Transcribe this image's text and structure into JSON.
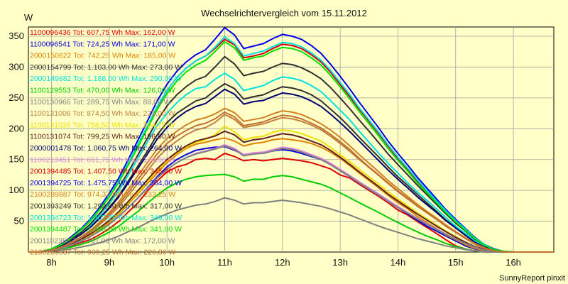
{
  "chart_data": {
    "type": "line",
    "title": "Wechselrichtervergleich vom 15.11.2012",
    "ylabel": "W",
    "xlabel": "",
    "footer": "SunnyReport pinxit",
    "xlim": [
      7.6,
      16.7
    ],
    "ylim": [
      0,
      365
    ],
    "x_ticks": [
      8,
      9,
      10,
      11,
      12,
      13,
      14,
      15,
      16
    ],
    "x_tick_labels": [
      "8h",
      "9h",
      "10h",
      "11h",
      "12h",
      "13h",
      "14h",
      "15h",
      "16h"
    ],
    "y_ticks": [
      50,
      100,
      150,
      200,
      250,
      300,
      350
    ],
    "grid": true,
    "legend_position": "top-left",
    "x": [
      7.6,
      7.8,
      8.0,
      8.17,
      8.33,
      8.5,
      8.67,
      8.83,
      9.0,
      9.17,
      9.33,
      9.5,
      9.67,
      9.83,
      10.0,
      10.17,
      10.33,
      10.5,
      10.67,
      10.83,
      11.0,
      11.17,
      11.33,
      11.5,
      11.67,
      11.83,
      12.0,
      12.17,
      12.33,
      12.5,
      12.67,
      12.83,
      13.0,
      13.17,
      13.33,
      13.5,
      13.67,
      13.83,
      14.0,
      14.17,
      14.33,
      14.5,
      14.67,
      14.83,
      15.0,
      15.17,
      15.33,
      15.5,
      15.67,
      15.83,
      16.0,
      16.17,
      16.33,
      16.5,
      16.7
    ],
    "series": [
      {
        "name": "1100096436 Tot: 607,75 Wh Max: 162,00 W",
        "color": "#e00000",
        "values": [
          0,
          0,
          3,
          6,
          10,
          15,
          20,
          28,
          38,
          50,
          65,
          80,
          100,
          115,
          130,
          138,
          142,
          150,
          152,
          150,
          160,
          155,
          148,
          150,
          148,
          150,
          152,
          150,
          148,
          145,
          140,
          135,
          125,
          120,
          110,
          100,
          90,
          80,
          68,
          60,
          50,
          40,
          30,
          20,
          10,
          5,
          2,
          0,
          0,
          0,
          0,
          0,
          0,
          0,
          0
        ]
      },
      {
        "name": "1100096541 Tot: 724,25 Wh Max: 171,00 W",
        "color": "#0000e0",
        "values": [
          0,
          0,
          3,
          7,
          12,
          18,
          25,
          34,
          45,
          58,
          72,
          88,
          105,
          122,
          138,
          150,
          158,
          165,
          168,
          170,
          171,
          165,
          158,
          160,
          160,
          164,
          166,
          164,
          160,
          155,
          150,
          142,
          132,
          122,
          112,
          102,
          92,
          82,
          72,
          62,
          52,
          42,
          34,
          26,
          18,
          10,
          5,
          2,
          0,
          0,
          0,
          0,
          0,
          0,
          0
        ]
      },
      {
        "name": "2000150622 Tot: 742,25 Wh Max: 185,00 W",
        "color": "#e08000",
        "values": [
          0,
          0,
          3,
          7,
          12,
          18,
          26,
          36,
          48,
          62,
          78,
          95,
          112,
          128,
          145,
          158,
          168,
          175,
          178,
          182,
          185,
          180,
          172,
          176,
          178,
          182,
          184,
          182,
          180,
          176,
          170,
          162,
          152,
          140,
          128,
          116,
          104,
          92,
          80,
          70,
          58,
          48,
          38,
          28,
          20,
          12,
          6,
          2,
          0,
          0,
          0,
          0,
          0,
          0,
          0
        ]
      },
      {
        "name": "2000154799 Tot: 1.103,00 Wh Max: 273,00 W",
        "color": "#303030",
        "values": [
          0,
          0,
          4,
          10,
          18,
          28,
          40,
          55,
          72,
          92,
          115,
          140,
          165,
          190,
          210,
          225,
          235,
          245,
          250,
          262,
          273,
          265,
          248,
          252,
          255,
          262,
          268,
          266,
          262,
          255,
          245,
          232,
          218,
          202,
          186,
          170,
          154,
          138,
          122,
          108,
          94,
          80,
          66,
          52,
          40,
          28,
          16,
          8,
          3,
          1,
          0,
          0,
          0,
          0,
          0
        ]
      },
      {
        "name": "2000149882 Tot: 1.188,00 Wh Max: 290,00 W",
        "color": "#00e0e0",
        "values": [
          0,
          0,
          4,
          10,
          19,
          30,
          43,
          59,
          78,
          100,
          125,
          152,
          180,
          205,
          225,
          242,
          255,
          265,
          268,
          280,
          290,
          280,
          262,
          266,
          270,
          278,
          284,
          282,
          278,
          270,
          260,
          246,
          230,
          214,
          196,
          178,
          160,
          144,
          128,
          112,
          98,
          84,
          70,
          56,
          42,
          30,
          18,
          9,
          3,
          1,
          0,
          0,
          0,
          0,
          0
        ]
      },
      {
        "name": "1100129553 Tot: 470,00 Wh Max: 126,00 W",
        "color": "#00cc00",
        "values": [
          0,
          0,
          2,
          5,
          8,
          12,
          17,
          24,
          32,
          42,
          54,
          66,
          80,
          92,
          104,
          112,
          118,
          122,
          124,
          125,
          126,
          122,
          115,
          118,
          118,
          122,
          124,
          122,
          118,
          114,
          110,
          104,
          96,
          88,
          80,
          72,
          64,
          56,
          48,
          40,
          33,
          26,
          20,
          14,
          9,
          5,
          2,
          0,
          0,
          0,
          0,
          0,
          0,
          0,
          0
        ]
      },
      {
        "name": "1100130966 Tot: 289,75 Wh Max: 88,00 W",
        "color": "#808080",
        "values": [
          0,
          0,
          1,
          3,
          5,
          8,
          11,
          15,
          20,
          26,
          33,
          40,
          48,
          55,
          62,
          68,
          72,
          76,
          78,
          82,
          88,
          84,
          78,
          80,
          80,
          82,
          84,
          82,
          80,
          77,
          74,
          70,
          65,
          60,
          54,
          48,
          42,
          37,
          32,
          27,
          22,
          18,
          14,
          10,
          7,
          4,
          2,
          0,
          0,
          0,
          0,
          0,
          0,
          0,
          0
        ]
      },
      {
        "name": "1100131006 Tot: 874,50 Wh Max: 223,00 W",
        "color": "#c08040",
        "values": [
          0,
          0,
          3,
          8,
          14,
          22,
          32,
          44,
          58,
          74,
          92,
          112,
          132,
          152,
          168,
          180,
          190,
          198,
          202,
          210,
          223,
          215,
          202,
          205,
          208,
          213,
          218,
          216,
          212,
          206,
          198,
          188,
          176,
          163,
          150,
          137,
          124,
          111,
          98,
          86,
          75,
          64,
          53,
          42,
          32,
          22,
          13,
          6,
          2,
          0,
          0,
          0,
          0,
          0,
          0
        ]
      },
      {
        "name": "1100131026 Tot: 758,50 Wh Max: 204,75 W",
        "color": "#f0e000",
        "values": [
          0,
          0,
          3,
          7,
          12,
          19,
          28,
          38,
          50,
          64,
          80,
          97,
          115,
          132,
          148,
          160,
          170,
          178,
          182,
          190,
          204,
          195,
          182,
          186,
          188,
          194,
          198,
          196,
          192,
          186,
          180,
          170,
          158,
          146,
          134,
          122,
          110,
          98,
          86,
          75,
          64,
          54,
          44,
          34,
          25,
          16,
          9,
          4,
          1,
          0,
          0,
          0,
          0,
          0,
          0
        ]
      },
      {
        "name": "1100131074 Tot: 799,25 Wh Max: 196,00 W",
        "color": "#602020",
        "values": [
          0,
          0,
          3,
          7,
          13,
          20,
          29,
          39,
          51,
          66,
          82,
          100,
          118,
          135,
          150,
          162,
          172,
          180,
          184,
          188,
          196,
          190,
          178,
          182,
          184,
          188,
          192,
          190,
          186,
          180,
          174,
          165,
          154,
          142,
          130,
          118,
          106,
          94,
          83,
          72,
          62,
          52,
          42,
          33,
          24,
          16,
          9,
          4,
          1,
          0,
          0,
          0,
          0,
          0,
          0
        ]
      },
      {
        "name": "2000001478 Tot: 1.060,75 Wh Max: 264,00 W",
        "color": "#000070",
        "values": [
          0,
          0,
          4,
          10,
          18,
          28,
          40,
          54,
          71,
          90,
          112,
          136,
          160,
          183,
          202,
          217,
          228,
          236,
          241,
          252,
          264,
          256,
          240,
          244,
          246,
          252,
          258,
          256,
          252,
          245,
          236,
          224,
          210,
          195,
          180,
          164,
          148,
          133,
          118,
          104,
          90,
          77,
          64,
          51,
          39,
          27,
          16,
          8,
          3,
          1,
          0,
          0,
          0,
          0,
          0
        ]
      },
      {
        "name": "1100213451 Tot: 661,75 Wh Max: 174,00 W",
        "color": "#e080e0",
        "values": [
          0,
          0,
          2,
          6,
          11,
          17,
          25,
          34,
          45,
          58,
          72,
          88,
          104,
          120,
          134,
          145,
          153,
          160,
          164,
          168,
          174,
          168,
          158,
          161,
          162,
          166,
          170,
          168,
          164,
          158,
          152,
          144,
          134,
          124,
          114,
          104,
          94,
          84,
          74,
          64,
          55,
          46,
          37,
          29,
          21,
          14,
          8,
          3,
          1,
          0,
          0,
          0,
          0,
          0,
          0
        ]
      },
      {
        "name": "2001394485 Tot: 1.407,50 Wh Max: 345,00 W",
        "color": "#d00000",
        "values": [
          0,
          0,
          5,
          12,
          22,
          35,
          50,
          68,
          90,
          115,
          143,
          174,
          205,
          235,
          262,
          283,
          298,
          310,
          318,
          330,
          345,
          336,
          315,
          318,
          322,
          330,
          337,
          335,
          330,
          320,
          308,
          292,
          272,
          252,
          232,
          212,
          192,
          172,
          152,
          134,
          116,
          99,
          82,
          66,
          50,
          36,
          22,
          11,
          4,
          1,
          0,
          0,
          0,
          0,
          0
        ]
      },
      {
        "name": "2001394725 Tot: 1.475,75 Wh Max: 364,00 W",
        "color": "#0000f0",
        "values": [
          0,
          0,
          5,
          13,
          24,
          37,
          53,
          72,
          95,
          121,
          150,
          182,
          214,
          245,
          272,
          293,
          308,
          320,
          328,
          345,
          364,
          352,
          330,
          334,
          338,
          346,
          353,
          350,
          345,
          335,
          322,
          305,
          285,
          264,
          243,
          222,
          201,
          180,
          160,
          141,
          122,
          104,
          86,
          69,
          53,
          38,
          24,
          12,
          5,
          1,
          0,
          0,
          0,
          0,
          0
        ]
      },
      {
        "name": "2100289887 Tot: 974,37 Wh Max: 233,25 W",
        "color": "#d08020",
        "values": [
          0,
          0,
          3,
          8,
          15,
          24,
          35,
          48,
          64,
          82,
          102,
          124,
          146,
          167,
          184,
          196,
          206,
          214,
          218,
          224,
          233,
          226,
          212,
          215,
          218,
          224,
          229,
          227,
          223,
          216,
          208,
          198,
          186,
          172,
          158,
          144,
          130,
          116,
          103,
          90,
          78,
          66,
          55,
          44,
          33,
          23,
          14,
          7,
          2,
          0,
          0,
          0,
          0,
          0,
          0
        ]
      },
      {
        "name": "2001393249 Tot: 1.292,00 Wh Max: 317,00 W",
        "color": "#303030",
        "values": [
          0,
          0,
          4,
          11,
          20,
          31,
          45,
          62,
          82,
          105,
          130,
          158,
          186,
          213,
          237,
          255,
          268,
          279,
          285,
          300,
          317,
          305,
          286,
          290,
          293,
          300,
          306,
          304,
          299,
          291,
          281,
          267,
          250,
          232,
          214,
          196,
          177,
          159,
          142,
          125,
          109,
          93,
          77,
          62,
          47,
          34,
          21,
          11,
          4,
          1,
          0,
          0,
          0,
          0,
          0
        ]
      },
      {
        "name": "2001394723 Tot: 1.407,25 Wh Max: 349,00 W",
        "color": "#00e0e0",
        "values": [
          0,
          0,
          5,
          12,
          22,
          35,
          51,
          69,
          91,
          116,
          144,
          175,
          206,
          236,
          262,
          283,
          298,
          310,
          318,
          332,
          349,
          338,
          318,
          322,
          326,
          333,
          340,
          338,
          333,
          323,
          311,
          295,
          275,
          255,
          234,
          214,
          194,
          174,
          154,
          136,
          118,
          100,
          83,
          67,
          51,
          37,
          23,
          12,
          4,
          1,
          0,
          0,
          0,
          0,
          0
        ]
      },
      {
        "name": "2001394487 Tot: 1.398,00 Wh Max: 341,00 W",
        "color": "#00e000",
        "values": [
          0,
          0,
          5,
          12,
          22,
          35,
          50,
          68,
          89,
          114,
          141,
          171,
          202,
          231,
          257,
          277,
          292,
          303,
          311,
          325,
          341,
          331,
          311,
          315,
          318,
          326,
          332,
          330,
          325,
          315,
          303,
          287,
          268,
          248,
          228,
          208,
          188,
          168,
          149,
          131,
          113,
          96,
          80,
          64,
          49,
          35,
          22,
          11,
          4,
          1,
          0,
          0,
          0,
          0,
          0
        ]
      },
      {
        "name": "2001102358 Tot: 701,00 Wh Max: 172,00 W",
        "color": "#808080",
        "values": [
          0,
          0,
          2,
          6,
          11,
          17,
          25,
          34,
          45,
          58,
          72,
          88,
          104,
          120,
          134,
          145,
          153,
          159,
          163,
          167,
          172,
          166,
          156,
          159,
          160,
          164,
          168,
          166,
          162,
          156,
          150,
          142,
          132,
          122,
          112,
          102,
          92,
          82,
          72,
          63,
          54,
          45,
          37,
          29,
          21,
          14,
          8,
          3,
          1,
          0,
          0,
          0,
          0,
          0,
          0
        ]
      },
      {
        "name": "2100289887 Tot: 939,25 Wh Max: 226,86 W",
        "color": "#c07030",
        "values": [
          0,
          0,
          3,
          8,
          14,
          23,
          33,
          46,
          61,
          78,
          97,
          118,
          139,
          159,
          176,
          188,
          197,
          205,
          209,
          216,
          226.86,
          219,
          205,
          208,
          211,
          217,
          222,
          220,
          216,
          209,
          201,
          191,
          179,
          166,
          152,
          138,
          125,
          112,
          99,
          87,
          75,
          64,
          53,
          42,
          32,
          22,
          13,
          6,
          2,
          0,
          0,
          0,
          0,
          0,
          0
        ]
      }
    ]
  }
}
